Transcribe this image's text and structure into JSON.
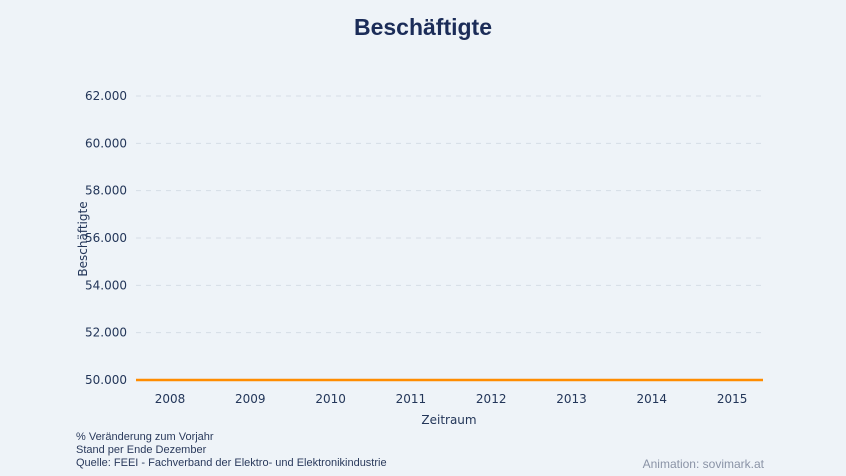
{
  "chart_data": {
    "type": "line",
    "title": "Beschäftigte",
    "xlabel": "Zeitraum",
    "ylabel": "Beschäftigte",
    "categories": [
      "2008",
      "2009",
      "2010",
      "2011",
      "2012",
      "2013",
      "2014",
      "2015"
    ],
    "series": [
      {
        "values": [
          50000,
          50000,
          50000,
          50000,
          50000,
          50000,
          50000,
          50000
        ],
        "color": "#ff8c00"
      }
    ],
    "ylim": [
      50000,
      62000
    ],
    "yticks": [
      50000,
      52000,
      54000,
      56000,
      58000,
      60000,
      62000
    ],
    "ytick_labels": [
      "50.000",
      "52.000",
      "54.000",
      "56.000",
      "58.000",
      "60.000",
      "62.000"
    ],
    "grid": true
  },
  "notes": [
    "% Veränderung zum Vorjahr",
    "Stand per Ende Dezember",
    "Quelle: FEEI - Fachverband der Elektro- und Elektronikindustrie"
  ],
  "credit": "Animation: sovimark.at"
}
